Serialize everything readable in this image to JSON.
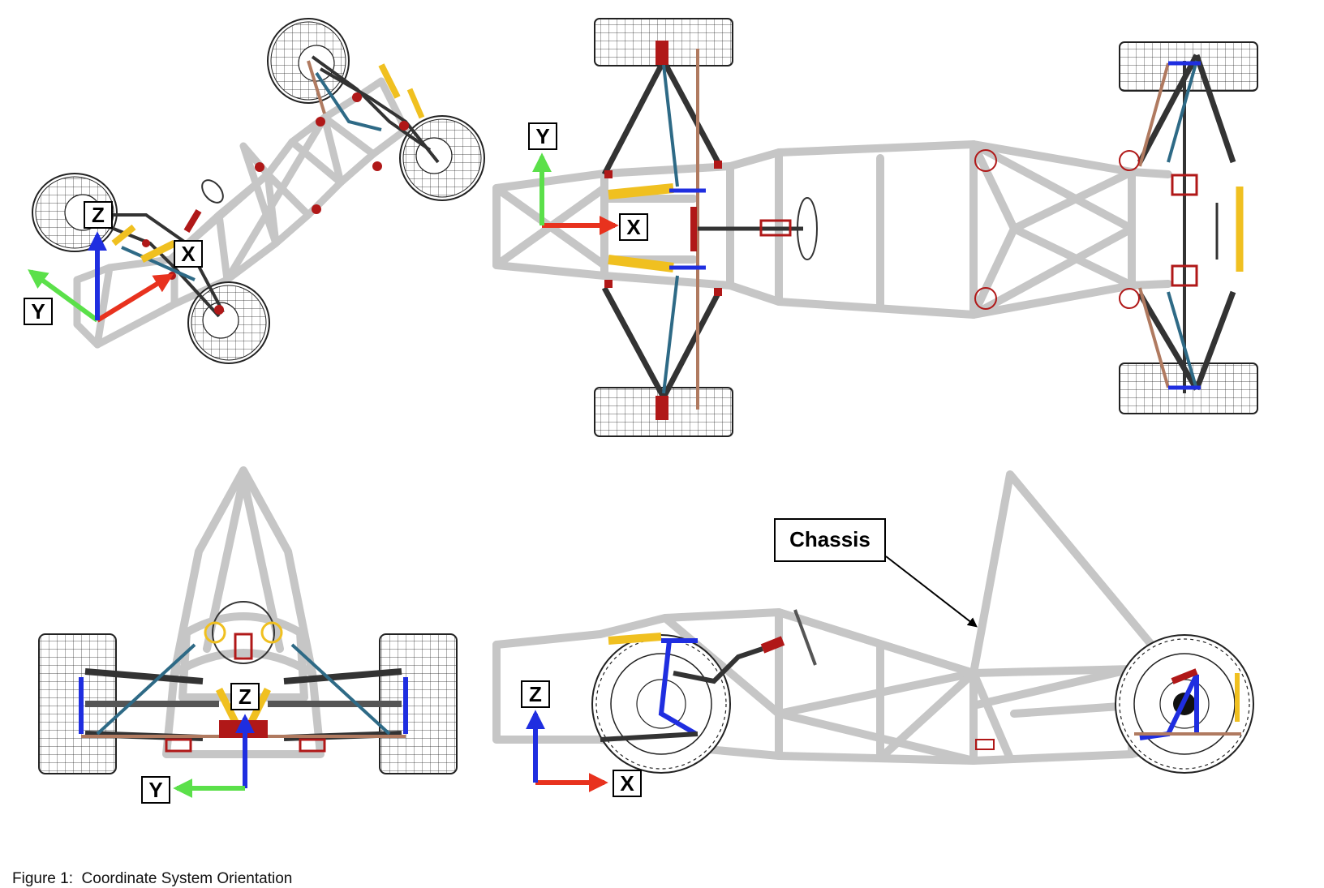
{
  "views": {
    "iso": {
      "x_label": "X",
      "y_label": "Y",
      "z_label": "Z"
    },
    "top": {
      "x_label": "X",
      "y_label": "Y"
    },
    "front": {
      "y_label": "Y",
      "z_label": "Z"
    },
    "side": {
      "x_label": "X",
      "z_label": "Z"
    }
  },
  "callout": {
    "label": "Chassis"
  },
  "caption": "Figure 1:  Coordinate System Orientation",
  "colors": {
    "x_axis": "#e8321e",
    "y_axis": "#5be04a",
    "z_axis": "#1f2ee0",
    "frame": "#c6c6c6",
    "spring": "#f0c020",
    "control_arm": "#333333",
    "pushrod": "#2e6a86",
    "tie_rod": "#b07a60",
    "mount": "#b01818"
  }
}
